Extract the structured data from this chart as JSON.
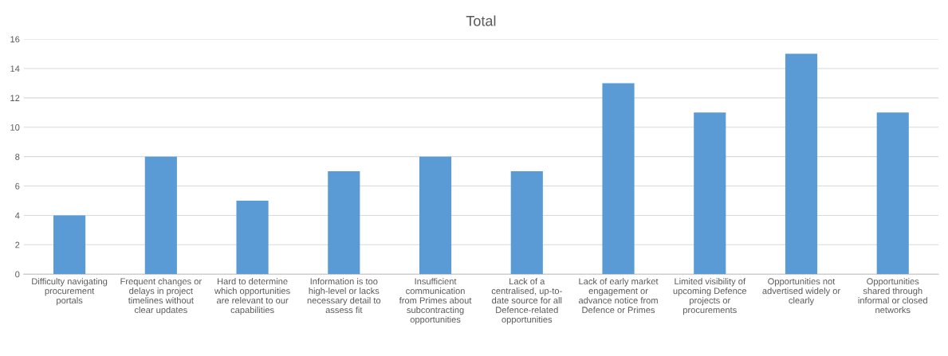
{
  "chart_data": {
    "type": "bar",
    "title": "Total",
    "categories": [
      "Difficulty navigating\nprocurement\nportals",
      "Frequent changes or\ndelays in project\ntimelines without\nclear updates",
      "Hard to determine\nwhich opportunities\nare relevant to our\ncapabilities",
      "Information is too\nhigh-level or lacks\nnecessary detail to\nassess fit",
      "Insufficient\ncommunication\nfrom Primes about\nsubcontracting\nopportunities",
      "Lack of a\ncentralised, up-to-\ndate source for all\nDefence-related\nopportunities",
      "Lack of early market\nengagement or\nadvance notice from\nDefence or Primes",
      "Limited visibility of\nupcoming Defence\nprojects or\nprocurements",
      "Opportunities not\nadvertised widely or\nclearly",
      "Opportunities\nshared through\ninformal or closed\nnetworks"
    ],
    "values": [
      4,
      8,
      5,
      7,
      8,
      7,
      13,
      11,
      15,
      11
    ],
    "color": "#5b9bd5",
    "ylim": [
      0,
      16
    ],
    "yticks": [
      0,
      2,
      4,
      6,
      8,
      10,
      12,
      14,
      16
    ],
    "grid": "y"
  }
}
